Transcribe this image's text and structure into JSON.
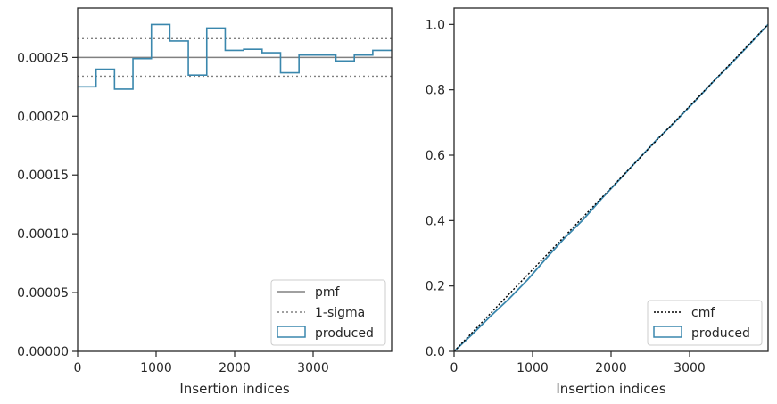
{
  "colors": {
    "series": "#3a87ad",
    "pmf": "#808080",
    "sigma": "#808080",
    "cmf": "#000000",
    "axes": "#262626"
  },
  "chart_data": [
    {
      "type": "step",
      "xlabel": "Insertion indices",
      "ylabel": "",
      "xlim": [
        0,
        4000
      ],
      "ylim": [
        0,
        0.000292
      ],
      "xticks": [
        0,
        1000,
        2000,
        3000
      ],
      "xtick_labels": [
        "0",
        "1000",
        "2000",
        "3000"
      ],
      "yticks": [
        0,
        5e-05,
        0.0001,
        0.00015,
        0.0002,
        0.00025
      ],
      "ytick_labels": [
        "0.00000",
        "0.00005",
        "0.00010",
        "0.00015",
        "0.00020",
        "0.00025"
      ],
      "bin_edges": [
        0,
        235,
        470,
        705,
        940,
        1175,
        1410,
        1645,
        1880,
        2115,
        2350,
        2585,
        2820,
        3055,
        3290,
        3525,
        3760,
        4000
      ],
      "bin_values": [
        0.000225,
        0.00024,
        0.000223,
        0.000249,
        0.000278,
        0.000264,
        0.000235,
        0.000275,
        0.000256,
        0.000257,
        0.000254,
        0.000237,
        0.000252,
        0.000252,
        0.000247,
        0.000252,
        0.000256
      ],
      "pmf": 0.00025,
      "sigma_upper": 0.000266,
      "sigma_lower": 0.000234,
      "legend_position": "lower-right",
      "legend": [
        "pmf",
        "1-sigma",
        "produced"
      ]
    },
    {
      "type": "line",
      "xlabel": "Insertion indices",
      "ylabel": "",
      "xlim": [
        0,
        4000
      ],
      "ylim": [
        0,
        1.05
      ],
      "xticks": [
        0,
        1000,
        2000,
        3000
      ],
      "xtick_labels": [
        "0",
        "1000",
        "2000",
        "3000"
      ],
      "yticks": [
        0,
        0.2,
        0.4,
        0.6,
        0.8,
        1.0
      ],
      "ytick_labels": [
        "0.0",
        "0.2",
        "0.4",
        "0.6",
        "0.8",
        "1.0"
      ],
      "cmf": {
        "x": [
          0,
          4000
        ],
        "y": [
          0,
          1.0
        ]
      },
      "produced": {
        "x": [
          0,
          235,
          470,
          705,
          940,
          1175,
          1410,
          1645,
          1880,
          2115,
          2350,
          2585,
          2820,
          3055,
          3290,
          3525,
          3760,
          4000
        ],
        "y": [
          0,
          0.053,
          0.109,
          0.162,
          0.22,
          0.285,
          0.347,
          0.403,
          0.467,
          0.527,
          0.588,
          0.648,
          0.703,
          0.762,
          0.822,
          0.879,
          0.938,
          1.0
        ]
      },
      "legend_position": "lower-right",
      "legend": [
        "cmf",
        "produced"
      ]
    }
  ]
}
